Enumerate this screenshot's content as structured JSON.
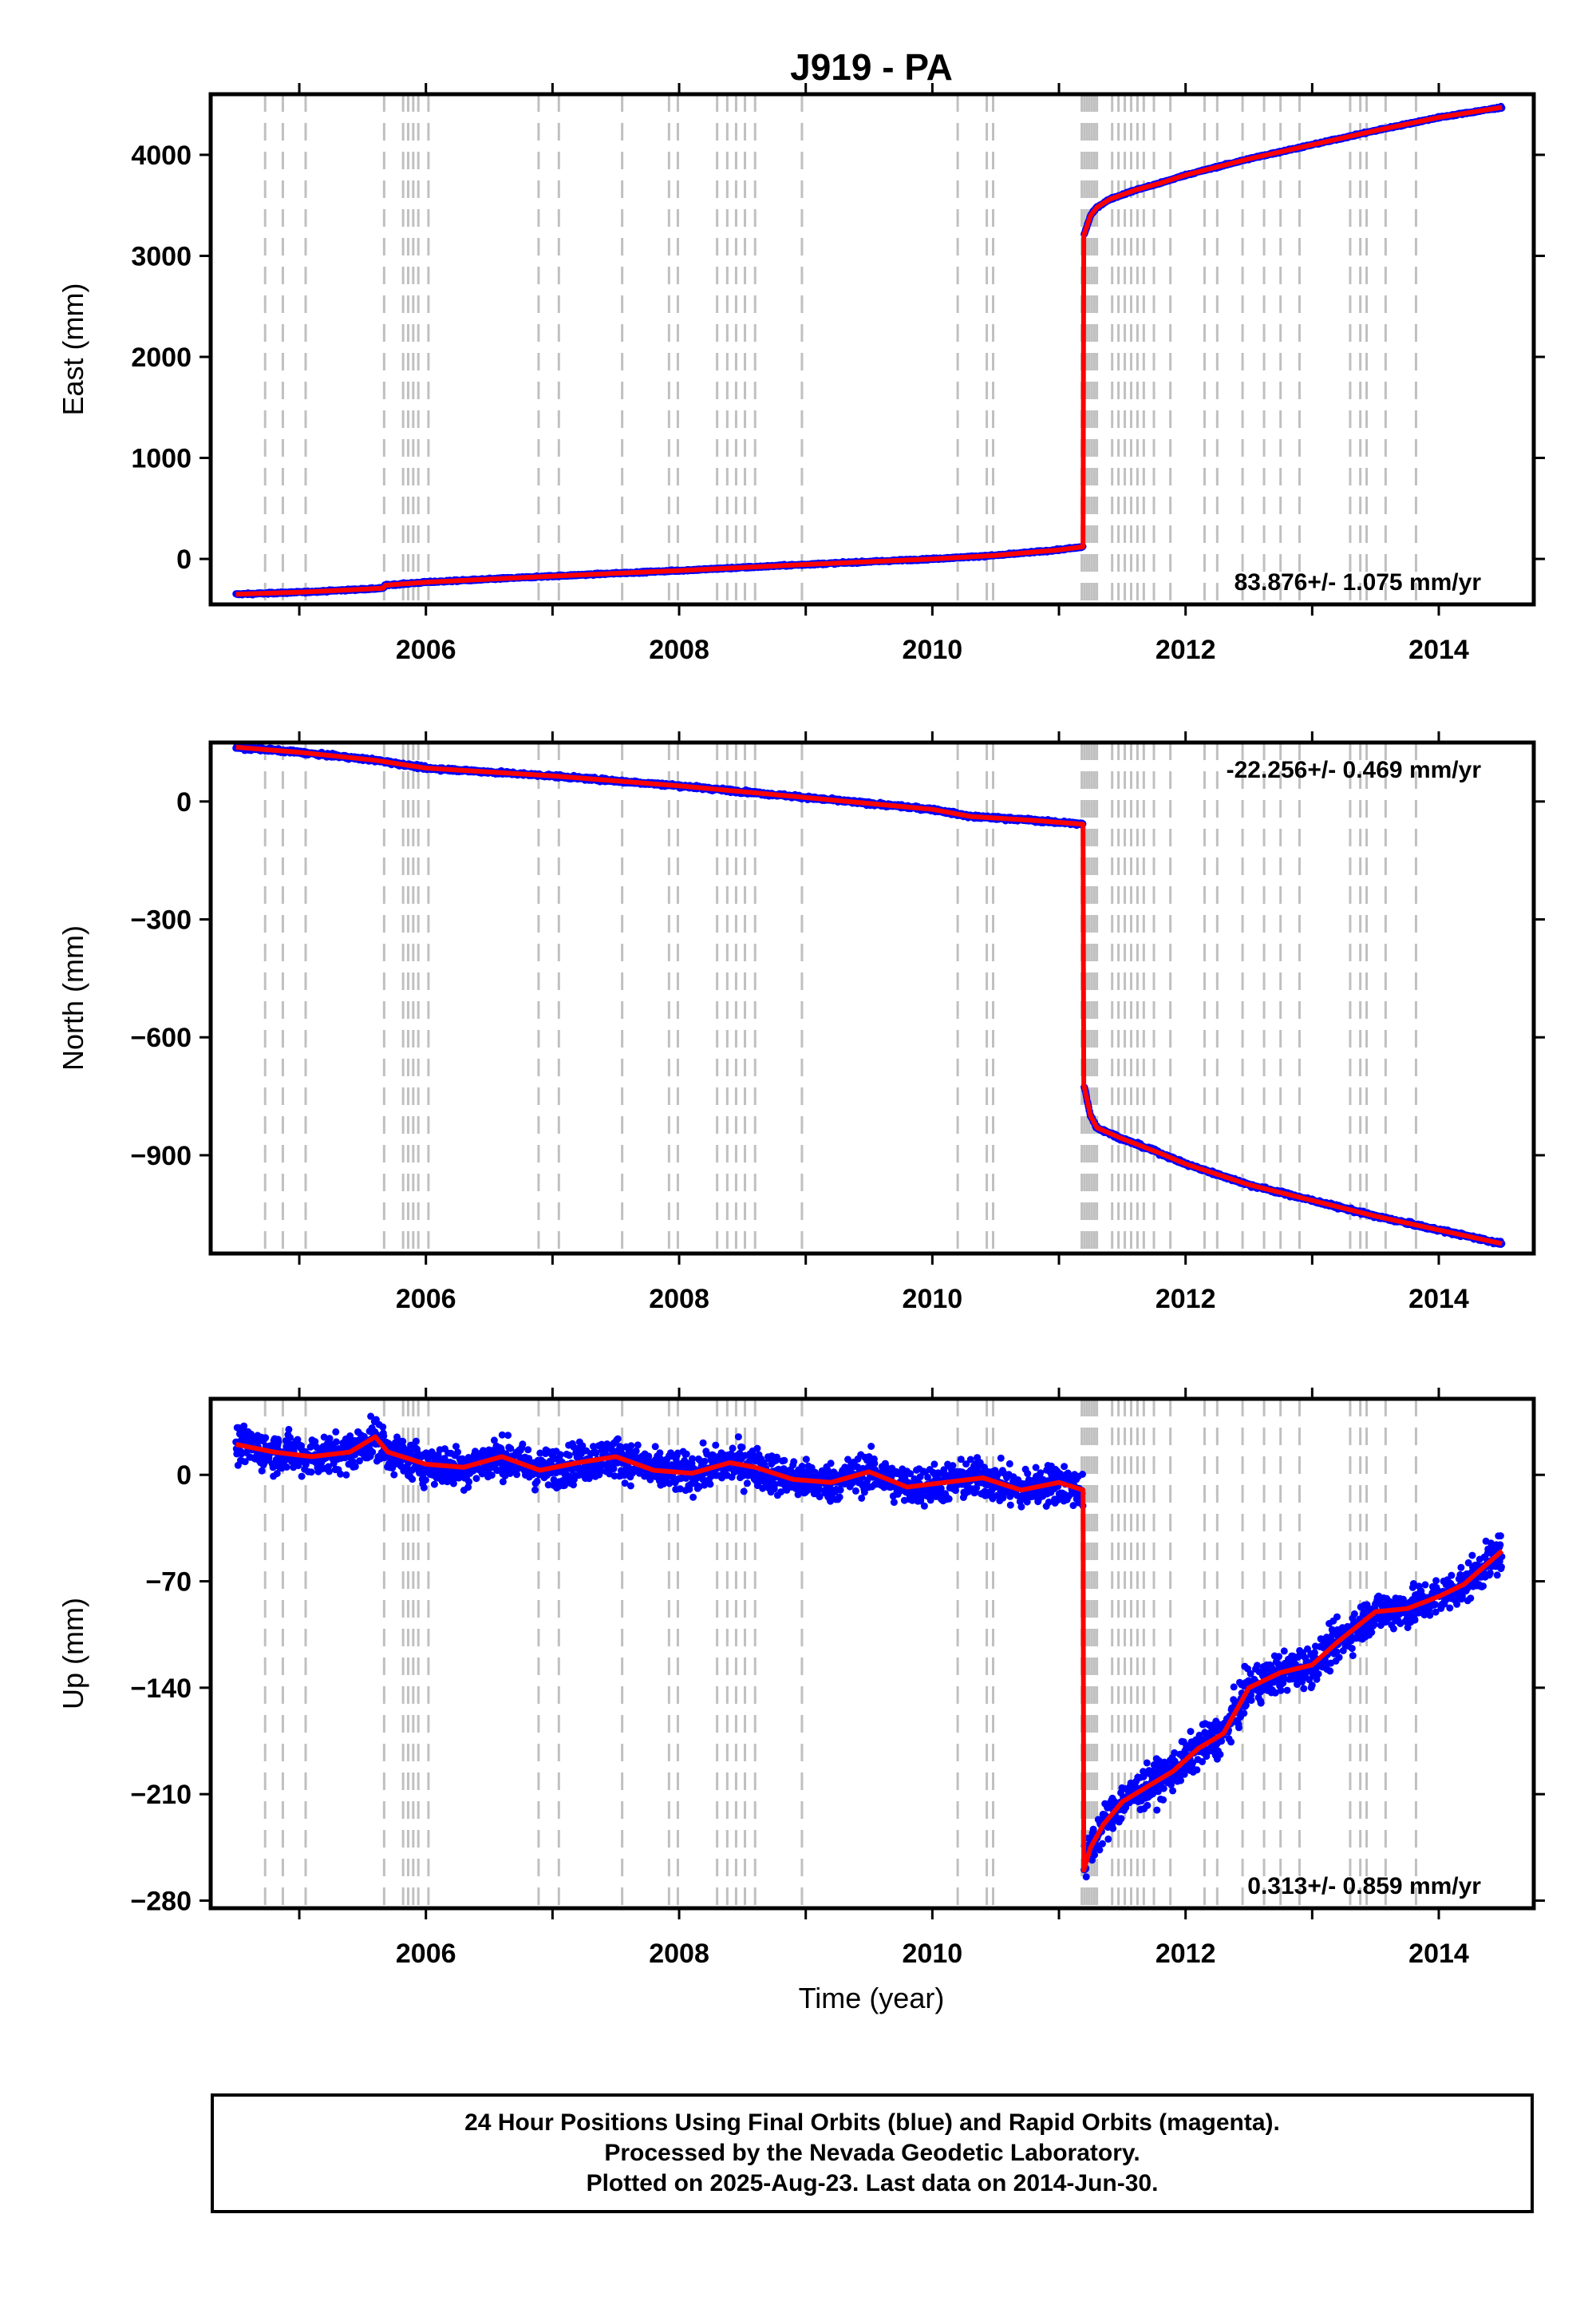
{
  "title": "J919 - PA",
  "xlabel": "Time (year)",
  "colors": {
    "data_points": "#0000ff",
    "model_fit": "#ff0000",
    "event_lines": "#c0c0c0"
  },
  "footer": {
    "line1": "24 Hour Positions Using Final Orbits (blue) and Rapid Orbits (magenta).",
    "line2": "Processed by the Nevada Geodetic Laboratory.",
    "line3": "Plotted on 2025-Aug-23. Last data on 2014-Jun-30."
  },
  "event_lines": [
    2004.73,
    2004.87,
    2005.05,
    2005.67,
    2005.82,
    2005.86,
    2005.9,
    2005.94,
    2006.02,
    2006.89,
    2007.05,
    2007.55,
    2007.92,
    2007.99,
    2008.3,
    2008.38,
    2008.45,
    2008.52,
    2008.6,
    2008.97,
    2010.2,
    2010.43,
    2010.48,
    2011.18,
    2011.2,
    2011.22,
    2011.24,
    2011.26,
    2011.28,
    2011.3,
    2011.42,
    2011.47,
    2011.52,
    2011.57,
    2011.62,
    2011.67,
    2011.75,
    2011.88,
    2012.15,
    2012.25,
    2012.45,
    2012.62,
    2012.75,
    2012.9,
    2013.3,
    2013.38,
    2013.43,
    2013.58,
    2013.82
  ],
  "chart_data": [
    {
      "type": "scatter",
      "name": "east",
      "ylabel": "East (mm)",
      "rate_label": "83.876+/- 1.075 mm/yr",
      "rate_position": "bottom-right",
      "xlim": [
        2004.3,
        2014.75
      ],
      "ylim": [
        -450,
        4600
      ],
      "xticks": [
        2006,
        2008,
        2010,
        2012,
        2014
      ],
      "yticks": [
        0,
        1000,
        2000,
        3000,
        4000
      ],
      "tick_labels": [
        "0",
        "1000",
        "2000",
        "3000",
        "4000"
      ],
      "x_tick_labels": [
        "2006",
        "2008",
        "2010",
        "2012",
        "2014"
      ],
      "model_x": [
        2004.5,
        2005.0,
        2005.5,
        2005.66,
        2005.68,
        2006.0,
        2007.0,
        2008.0,
        2009.0,
        2010.0,
        2010.5,
        2011.0,
        2011.19,
        2011.196,
        2011.25,
        2011.3,
        2011.4,
        2011.6,
        2011.8,
        2012.0,
        2012.5,
        2013.0,
        2013.5,
        2014.0,
        2014.5
      ],
      "model_y": [
        -350,
        -330,
        -300,
        -290,
        -260,
        -230,
        -170,
        -115,
        -55,
        0,
        35,
        90,
        120,
        3200,
        3400,
        3480,
        3560,
        3650,
        3720,
        3800,
        3960,
        4100,
        4240,
        4370,
        4470
      ],
      "noise": 6
    },
    {
      "type": "scatter",
      "name": "north",
      "ylabel": "North (mm)",
      "rate_label": "-22.256+/- 0.469 mm/yr",
      "rate_position": "top-right",
      "xlim": [
        2004.3,
        2014.75
      ],
      "ylim": [
        -1150,
        150
      ],
      "xticks": [
        2006,
        2008,
        2010,
        2012,
        2014
      ],
      "yticks": [
        0,
        -300,
        -600,
        -900
      ],
      "tick_labels": [
        "0",
        "−300",
        "−600",
        "−900"
      ],
      "x_tick_labels": [
        "2006",
        "2008",
        "2010",
        "2012",
        "2014"
      ],
      "model_x": [
        2004.5,
        2005.0,
        2005.6,
        2006.0,
        2007.0,
        2008.0,
        2009.0,
        2010.0,
        2010.3,
        2010.8,
        2011.19,
        2011.196,
        2011.25,
        2011.3,
        2011.5,
        2011.8,
        2012.0,
        2012.5,
        2013.0,
        2013.5,
        2014.0,
        2014.5
      ],
      "model_y": [
        138,
        125,
        105,
        85,
        65,
        40,
        10,
        -20,
        -38,
        -48,
        -58,
        -720,
        -800,
        -830,
        -858,
        -895,
        -922,
        -975,
        -1015,
        -1055,
        -1090,
        -1125
      ],
      "noise": 3
    },
    {
      "type": "scatter",
      "name": "up",
      "ylabel": "Up (mm)",
      "rate_label": "0.313+/- 0.859 mm/yr",
      "rate_position": "bottom-right",
      "xlim": [
        2004.3,
        2014.75
      ],
      "ylim": [
        -285,
        50
      ],
      "xticks": [
        2006,
        2008,
        2010,
        2012,
        2014
      ],
      "yticks": [
        0,
        -70,
        -140,
        -210,
        -280
      ],
      "tick_labels": [
        "0",
        "−70",
        "−140",
        "−210",
        "−280"
      ],
      "x_tick_labels": [
        "2006",
        "2008",
        "2010",
        "2012",
        "2014"
      ],
      "model_x": [
        2004.5,
        2004.8,
        2005.1,
        2005.4,
        2005.6,
        2005.7,
        2006.0,
        2006.3,
        2006.6,
        2006.9,
        2007.2,
        2007.5,
        2007.8,
        2008.1,
        2008.4,
        2008.6,
        2008.9,
        2009.2,
        2009.5,
        2009.8,
        2010.1,
        2010.4,
        2010.7,
        2011.0,
        2011.19,
        2011.196,
        2011.25,
        2011.35,
        2011.5,
        2011.7,
        2011.9,
        2012.1,
        2012.3,
        2012.5,
        2012.75,
        2013.0,
        2013.2,
        2013.5,
        2013.75,
        2014.0,
        2014.2,
        2014.5
      ],
      "model_y": [
        20,
        15,
        12,
        15,
        25,
        15,
        7,
        5,
        12,
        3,
        8,
        12,
        3,
        1,
        8,
        5,
        -3,
        -5,
        2,
        -8,
        -5,
        -2,
        -10,
        -5,
        -10,
        -260,
        -245,
        -230,
        -215,
        -205,
        -195,
        -180,
        -170,
        -140,
        -130,
        -125,
        -110,
        -90,
        -88,
        -80,
        -72,
        -50
      ],
      "noise": 9
    }
  ]
}
